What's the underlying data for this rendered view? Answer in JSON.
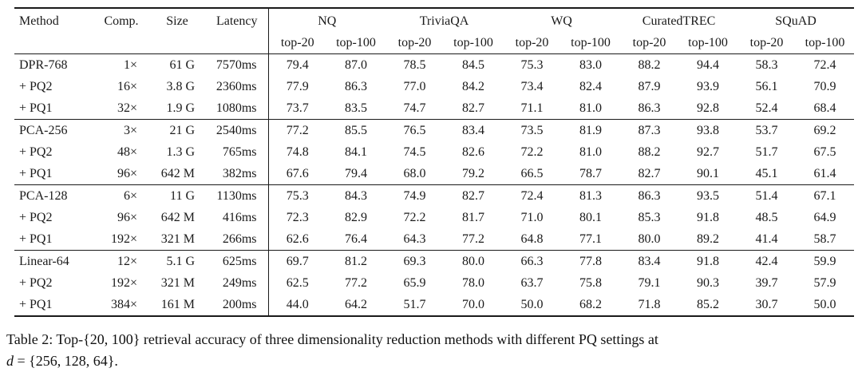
{
  "table": {
    "columns_left": [
      "Method",
      "Comp.",
      "Size",
      "Latency"
    ],
    "groups": [
      "NQ",
      "TriviaQA",
      "WQ",
      "CuratedTREC",
      "SQuAD"
    ],
    "subheaders": [
      "top-20",
      "top-100"
    ],
    "blocks": [
      {
        "rows": [
          {
            "method": "DPR-768",
            "comp": "1×",
            "size": "61 G",
            "latency": "7570ms",
            "values": [
              "79.4",
              "87.0",
              "78.5",
              "84.5",
              "75.3",
              "83.0",
              "88.2",
              "94.4",
              "58.3",
              "72.4"
            ]
          },
          {
            "method": "+ PQ2",
            "comp": "16×",
            "size": "3.8 G",
            "latency": "2360ms",
            "values": [
              "77.9",
              "86.3",
              "77.0",
              "84.2",
              "73.4",
              "82.4",
              "87.9",
              "93.9",
              "56.1",
              "70.9"
            ]
          },
          {
            "method": "+ PQ1",
            "comp": "32×",
            "size": "1.9 G",
            "latency": "1080ms",
            "values": [
              "73.7",
              "83.5",
              "74.7",
              "82.7",
              "71.1",
              "81.0",
              "86.3",
              "92.8",
              "52.4",
              "68.4"
            ]
          }
        ]
      },
      {
        "rows": [
          {
            "method": "PCA-256",
            "comp": "3×",
            "size": "21 G",
            "latency": "2540ms",
            "values": [
              "77.2",
              "85.5",
              "76.5",
              "83.4",
              "73.5",
              "81.9",
              "87.3",
              "93.8",
              "53.7",
              "69.2"
            ]
          },
          {
            "method": "+ PQ2",
            "comp": "48×",
            "size": "1.3 G",
            "latency": "765ms",
            "values": [
              "74.8",
              "84.1",
              "74.5",
              "82.6",
              "72.2",
              "81.0",
              "88.2",
              "92.7",
              "51.7",
              "67.5"
            ]
          },
          {
            "method": "+ PQ1",
            "comp": "96×",
            "size": "642 M",
            "latency": "382ms",
            "values": [
              "67.6",
              "79.4",
              "68.0",
              "79.2",
              "66.5",
              "78.7",
              "82.7",
              "90.1",
              "45.1",
              "61.4"
            ]
          }
        ]
      },
      {
        "rows": [
          {
            "method": "PCA-128",
            "comp": "6×",
            "size": "11 G",
            "latency": "1130ms",
            "values": [
              "75.3",
              "84.3",
              "74.9",
              "82.7",
              "72.4",
              "81.3",
              "86.3",
              "93.5",
              "51.4",
              "67.1"
            ]
          },
          {
            "method": "+ PQ2",
            "comp": "96×",
            "size": "642 M",
            "latency": "416ms",
            "values": [
              "72.3",
              "82.9",
              "72.2",
              "81.7",
              "71.0",
              "80.1",
              "85.3",
              "91.8",
              "48.5",
              "64.9"
            ]
          },
          {
            "method": "+ PQ1",
            "comp": "192×",
            "size": "321 M",
            "latency": "266ms",
            "values": [
              "62.6",
              "76.4",
              "64.3",
              "77.2",
              "64.8",
              "77.1",
              "80.0",
              "89.2",
              "41.4",
              "58.7"
            ]
          }
        ]
      },
      {
        "rows": [
          {
            "method": "Linear-64",
            "comp": "12×",
            "size": "5.1 G",
            "latency": "625ms",
            "values": [
              "69.7",
              "81.2",
              "69.3",
              "80.0",
              "66.3",
              "77.8",
              "83.4",
              "91.8",
              "42.4",
              "59.9"
            ]
          },
          {
            "method": "+ PQ2",
            "comp": "192×",
            "size": "321 M",
            "latency": "249ms",
            "values": [
              "62.5",
              "77.2",
              "65.9",
              "78.0",
              "63.7",
              "75.8",
              "79.1",
              "90.3",
              "39.7",
              "57.9"
            ]
          },
          {
            "method": "+ PQ1",
            "comp": "384×",
            "size": "161 M",
            "latency": "200ms",
            "values": [
              "44.0",
              "64.2",
              "51.7",
              "70.0",
              "50.0",
              "68.2",
              "71.8",
              "85.2",
              "30.7",
              "50.0"
            ]
          }
        ]
      }
    ]
  },
  "caption": {
    "text": "Table 2: Top-{20, 100} retrieval accuracy of three dimensionality reduction methods with different PQ settings at",
    "math_var": "d",
    "math_rest": " = {256, 128, 64}."
  }
}
